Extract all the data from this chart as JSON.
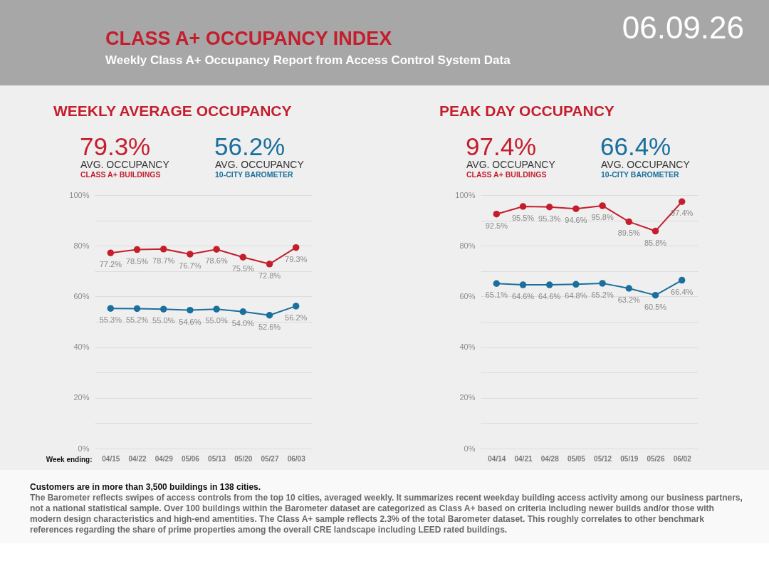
{
  "chart_data": [
    {
      "type": "other",
      "title": "CLASS A+ OCCUPANCY INDEX",
      "subtitle": "Weekly Class A+ Occupancy Report from Access Control System Data",
      "annotations": [
        "06.09.26"
      ]
    },
    {
      "type": "line",
      "title": "WEEKLY AVERAGE OCCUPANCY",
      "xlabel": "Week ending:",
      "categories": [
        "04/15",
        "04/22",
        "04/29",
        "05/06",
        "05/13",
        "05/20",
        "05/27",
        "06/03"
      ],
      "series": [
        {
          "name": "CLASS A+ BUILDINGS",
          "color": "#c41e2d",
          "values": [
            77.2,
            78.5,
            78.7,
            76.7,
            78.6,
            75.5,
            72.8,
            79.3
          ],
          "value_labels": [
            "77.2%",
            "78.5%",
            "78.7%",
            "76.7%",
            "78.6%",
            "75.5%",
            "72.8%",
            "79.3%"
          ]
        },
        {
          "name": "10-CITY BAROMETER",
          "color": "#1a6f9c",
          "values": [
            55.3,
            55.2,
            55.0,
            54.6,
            55.0,
            54.0,
            52.6,
            56.2
          ],
          "value_labels": [
            "55.3%",
            "55.2%",
            "55.0%",
            "54.6%",
            "55.0%",
            "54.0%",
            "52.6%",
            "56.2%"
          ]
        }
      ],
      "ylim": [
        0,
        100
      ],
      "yticks": [
        {
          "value": 0,
          "label": "0%"
        },
        {
          "value": 10,
          "label": null
        },
        {
          "value": 20,
          "label": "20%"
        },
        {
          "value": 30,
          "label": null
        },
        {
          "value": 40,
          "label": "40%"
        },
        {
          "value": 50,
          "label": null
        },
        {
          "value": 60,
          "label": "60%"
        },
        {
          "value": 70,
          "label": null
        },
        {
          "value": 80,
          "label": "80%"
        },
        {
          "value": 90,
          "label": null
        },
        {
          "value": 100,
          "label": "100%"
        }
      ],
      "grid": "y",
      "marker": "circle",
      "legend": "top",
      "annotations": [
        "79.3%",
        "AVG. OCCUPANCY",
        "56.2%",
        "AVG. OCCUPANCY"
      ]
    },
    {
      "type": "line",
      "title": "PEAK DAY OCCUPANCY",
      "categories": [
        "04/14",
        "04/21",
        "04/28",
        "05/05",
        "05/12",
        "05/19",
        "05/26",
        "06/02"
      ],
      "series": [
        {
          "name": "CLASS A+ BUILDINGS",
          "color": "#c41e2d",
          "values": [
            92.5,
            95.5,
            95.3,
            94.6,
            95.8,
            89.5,
            85.8,
            97.4
          ],
          "value_labels": [
            "92.5%",
            "95.5%",
            "95.3%",
            "94.6%",
            "95.8%",
            "89.5%",
            "85.8%",
            "97.4%"
          ]
        },
        {
          "name": "10-CITY BAROMETER",
          "color": "#1a6f9c",
          "values": [
            65.1,
            64.6,
            64.6,
            64.8,
            65.2,
            63.2,
            60.5,
            66.4
          ],
          "value_labels": [
            "65.1%",
            "64.6%",
            "64.6%",
            "64.8%",
            "65.2%",
            "63.2%",
            "60.5%",
            "66.4%"
          ]
        }
      ],
      "ylim": [
        0,
        100
      ],
      "yticks": [
        {
          "value": 0,
          "label": "0%"
        },
        {
          "value": 10,
          "label": null
        },
        {
          "value": 20,
          "label": "20%"
        },
        {
          "value": 30,
          "label": null
        },
        {
          "value": 40,
          "label": "40%"
        },
        {
          "value": 50,
          "label": null
        },
        {
          "value": 60,
          "label": "60%"
        },
        {
          "value": 70,
          "label": null
        },
        {
          "value": 80,
          "label": "80%"
        },
        {
          "value": 90,
          "label": null
        },
        {
          "value": 100,
          "label": "100%"
        }
      ],
      "grid": "y",
      "marker": "circle",
      "legend": "top",
      "annotations": [
        "97.4%",
        "AVG. OCCUPANCY",
        "66.4%",
        "AVG. OCCUPANCY"
      ]
    },
    {
      "type": "other",
      "annotations": [
        "Customers are in more than 3,500 buildings in 138 cities.",
        "The Barometer reflects swipes of access controls from the top 10 cities, averaged weekly. It summarizes recent weekday building access activity among our business partners, not a national statistical sample. Over 100 buildings within the Barometer dataset are categorized as Class A+ based on criteria including newer builds and/or those with modern design characteristics and high-end amentities. The Class A+ sample reflects 2.3% of the total Barometer dataset. This roughly correlates to other benchmark references regarding the share of prime properties among the overall CRE landscape including LEED rated buildings."
      ]
    }
  ]
}
